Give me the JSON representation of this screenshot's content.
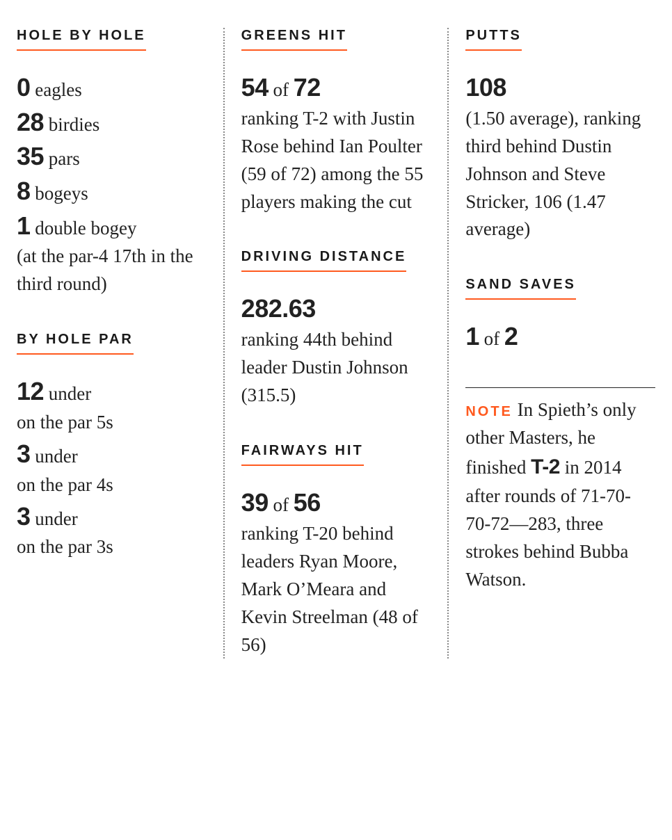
{
  "colors": {
    "accent": "#ff5a1f",
    "text": "#1a1a1a",
    "divider": "#888888",
    "background": "#ffffff"
  },
  "typography": {
    "heading_font": "Arial",
    "body_font": "Georgia",
    "heading_fontsize_pt": 15,
    "body_fontsize_pt": 20,
    "number_fontsize_pt": 27
  },
  "col1": {
    "hole_by_hole": {
      "title": "HOLE BY HOLE",
      "rows": [
        {
          "num": "0",
          "label": " eagles"
        },
        {
          "num": "28",
          "label": " birdies"
        },
        {
          "num": "35",
          "label": " pars"
        },
        {
          "num": "8",
          "label": " bogeys"
        },
        {
          "num": "1",
          "label": " double bogey"
        }
      ],
      "footnote": "(at the par-4 17th in the third round)"
    },
    "by_hole_par": {
      "title": "BY HOLE PAR",
      "rows": [
        {
          "num": "12",
          "label": " under",
          "sub": "on the par 5s"
        },
        {
          "num": "3",
          "label": " under",
          "sub": "on the par 4s"
        },
        {
          "num": "3",
          "label": " under",
          "sub": "on the par 3s"
        }
      ]
    }
  },
  "col2": {
    "greens_hit": {
      "title": "GREENS HIT",
      "n1": "54",
      "of": " of ",
      "n2": "72",
      "desc": "ranking T-2 with Justin Rose behind Ian Poulter (59 of 72) among the 55 players making the cut"
    },
    "driving_distance": {
      "title": "DRIVING DISTANCE",
      "n1": "282.63",
      "desc": "ranking 44th behind leader Dustin Johnson (315.5)"
    },
    "fairways_hit": {
      "title": "FAIRWAYS HIT",
      "n1": "39",
      "of": " of ",
      "n2": "56",
      "desc": "ranking T-20 behind leaders Ryan Moore, Mark O’Meara and Kevin Streelman (48 of 56)"
    }
  },
  "col3": {
    "putts": {
      "title": "PUTTS",
      "n1": "108",
      "desc": "(1.50 average), ranking third behind Dustin Johnson and Steve Stricker, 106 (1.47 average)"
    },
    "sand_saves": {
      "title": "SAND SAVES",
      "n1": "1",
      "of": " of ",
      "n2": "2"
    },
    "note": {
      "label": "NOTE",
      "pre": " In Spieth’s only other Masters, he finished ",
      "bold": "T-2",
      "post": " in 2014 after rounds of 71-70-70-72—283, three strokes behind Bubba Watson."
    }
  }
}
